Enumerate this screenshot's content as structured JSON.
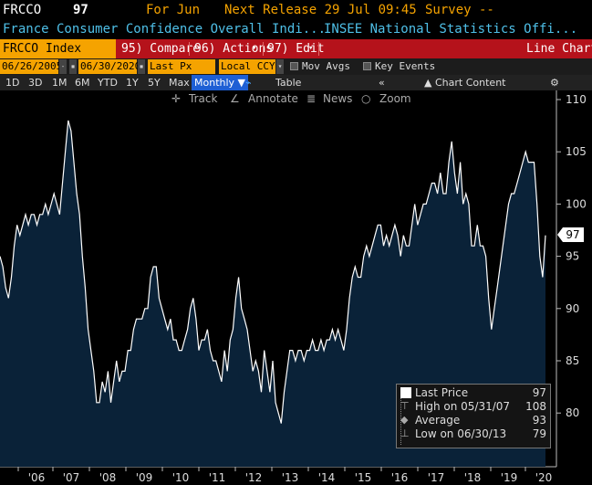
{
  "header": {
    "ticker": "FRCCO",
    "value": "97",
    "for_period": "For Jun",
    "next_release": "Next Release 29 Jul 09:45",
    "survey": "Survey --"
  },
  "subheader": {
    "name": "France Consumer Confidence Overall Indi...",
    "source": "INSEE National Statistics Offi..."
  },
  "menubar": {
    "security": "FRCCO Index",
    "compare": "95) Compare",
    "actions": "96) Actions",
    "edit": "97) Edit",
    "chart_type": "Line Chart"
  },
  "settings": {
    "start_date": "06/26/2005",
    "end_date": "06/30/2020",
    "field": "Last Px",
    "currency": "Local CCY",
    "mov_avgs": "Mov Avgs",
    "key_events": "Key Events"
  },
  "periods": {
    "items": [
      "1D",
      "3D",
      "1M",
      "6M",
      "YTD",
      "1Y",
      "5Y",
      "Max"
    ],
    "frequency": "Monthly",
    "table": "Table",
    "chart_content": "Chart Content"
  },
  "tools": {
    "track": "Track",
    "annotate": "Annotate",
    "news": "News",
    "zoom": "Zoom"
  },
  "legend": {
    "last_price_label": "Last Price",
    "last_price_value": "97",
    "high_label": "High on 05/31/07",
    "high_value": "108",
    "average_label": "Average",
    "average_value": "93",
    "low_label": "Low on 06/30/13",
    "low_value": "79"
  },
  "colors": {
    "line": "#ffffff",
    "fill": "#0a2238",
    "accent": "#f5a300",
    "menubar": "#b5121b"
  },
  "chart_data": {
    "type": "area",
    "x_tick_labels": [
      "'06",
      "'07",
      "'08",
      "'09",
      "'10",
      "'11",
      "'12",
      "'13",
      "'14",
      "'15",
      "'16",
      "'17",
      "'18",
      "'19",
      "'20"
    ],
    "y_tick_labels": [
      "80",
      "85",
      "90",
      "95",
      "100",
      "105",
      "110"
    ],
    "ylim": [
      77,
      111
    ],
    "last_value_label": "97",
    "series": [
      {
        "values": [
          95,
          94,
          92,
          91,
          93,
          96,
          98,
          97,
          98,
          99,
          98,
          99,
          99,
          98,
          99,
          99,
          100,
          99,
          100,
          101,
          100,
          99,
          102,
          105,
          108,
          107,
          104,
          101,
          99,
          95,
          92,
          88,
          86,
          84,
          81,
          81,
          83,
          82,
          84,
          81,
          83,
          85,
          83,
          84,
          84,
          86,
          86,
          88,
          89,
          89,
          89,
          90,
          90,
          93,
          94,
          94,
          91,
          90,
          89,
          88,
          89,
          87,
          87,
          86,
          86,
          87,
          88,
          90,
          91,
          89,
          86,
          87,
          87,
          88,
          86,
          85,
          85,
          84,
          83,
          86,
          84,
          87,
          88,
          91,
          93,
          90,
          89,
          88,
          86,
          84,
          85,
          84,
          82,
          86,
          84,
          82,
          85,
          81,
          80,
          79,
          82,
          84,
          86,
          86,
          85,
          86,
          86,
          85,
          86,
          86,
          87,
          86,
          86,
          87,
          86,
          87,
          87,
          88,
          87,
          88,
          87,
          86,
          88,
          91,
          93,
          94,
          93,
          93,
          95,
          96,
          95,
          96,
          97,
          98,
          98,
          96,
          97,
          96,
          97,
          98,
          97,
          95,
          97,
          96,
          96,
          98,
          100,
          98,
          99,
          100,
          100,
          101,
          102,
          102,
          101,
          103,
          101,
          101,
          104,
          106,
          103,
          101,
          104,
          100,
          101,
          100,
          96,
          96,
          98,
          96,
          96,
          95,
          91,
          88,
          90,
          92,
          94,
          96,
          98,
          100,
          101,
          101,
          102,
          103,
          104,
          105,
          104,
          104,
          104,
          100,
          95,
          93,
          97
        ]
      }
    ]
  }
}
